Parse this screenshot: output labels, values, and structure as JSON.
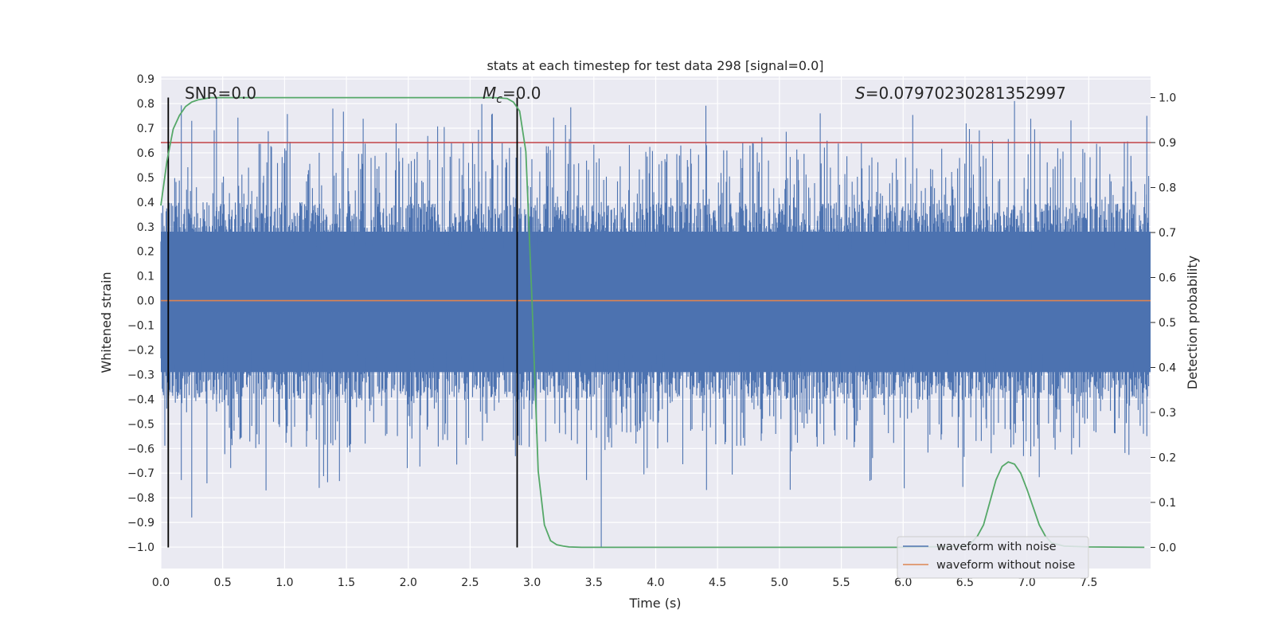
{
  "chart_data": {
    "type": "line",
    "title": "stats at each timestep for test data 298 [signal=0.0]",
    "xlabel": "Time (s)",
    "ylabel": "Whitened strain",
    "y2label": "Detection probability",
    "xlim": [
      0.0,
      8.0
    ],
    "ylim": [
      -1.087,
      0.91
    ],
    "y2lim": [
      -0.047,
      1.047
    ],
    "xticks": [
      "0.0",
      "0.5",
      "1.0",
      "1.5",
      "2.0",
      "2.5",
      "3.0",
      "3.5",
      "4.0",
      "4.5",
      "5.0",
      "5.5",
      "6.0",
      "6.5",
      "7.0",
      "7.5"
    ],
    "yticks": [
      "0.9",
      "0.8",
      "0.7",
      "0.6",
      "0.5",
      "0.4",
      "0.3",
      "0.2",
      "0.1",
      "0.0",
      "−0.1",
      "−0.2",
      "−0.3",
      "−0.4",
      "−0.5",
      "−0.6",
      "−0.7",
      "−0.8",
      "−0.9",
      "−1.0"
    ],
    "y2ticks": [
      "1.0",
      "0.9",
      "0.8",
      "0.7",
      "0.6",
      "0.5",
      "0.4",
      "0.3",
      "0.2",
      "0.1",
      "0.0"
    ],
    "grid": true,
    "legend_position": "lower right",
    "annotations": {
      "snr_prefix": "SNR=",
      "snr_value": "0.0",
      "mc_symbol": "M",
      "mc_subscript": "c",
      "mc_value": "=0.0",
      "s_symbol": "S",
      "s_value": "=0.07970230281352997"
    },
    "colors": {
      "noise": "#4c72b0",
      "clean": "#dd8452",
      "probability": "#55a868",
      "threshold": "#c44e52",
      "markers": "#000000",
      "background": "#eaeaf2"
    },
    "series": [
      {
        "name": "waveform with noise",
        "description_level": "dense noise band roughly between -0.29 and 0.28 with spikes up to about 0.82 and down to -1.0"
      },
      {
        "name": "waveform without noise",
        "values_constant": 0.0
      },
      {
        "name": "",
        "axis": "right",
        "x": [
          0.0,
          0.05,
          0.1,
          0.15,
          0.2,
          0.25,
          0.3,
          0.4,
          0.5,
          0.8,
          1.2,
          1.6,
          2.0,
          2.4,
          2.7,
          2.8,
          2.85,
          2.9,
          2.95,
          3.0,
          3.05,
          3.1,
          3.15,
          3.2,
          3.25,
          3.3,
          3.4,
          3.5,
          3.8,
          4.2,
          5.0,
          6.0,
          6.5,
          6.55,
          6.6,
          6.65,
          6.7,
          6.75,
          6.8,
          6.85,
          6.9,
          6.95,
          7.0,
          7.05,
          7.1,
          7.15,
          7.2,
          7.3,
          7.5,
          7.95
        ],
        "values": [
          0.76,
          0.86,
          0.93,
          0.96,
          0.98,
          0.99,
          0.995,
          1.0,
          1.0,
          1.0,
          1.0,
          1.0,
          1.0,
          1.0,
          1.0,
          0.998,
          0.99,
          0.97,
          0.88,
          0.55,
          0.17,
          0.05,
          0.015,
          0.006,
          0.003,
          0.001,
          0.0,
          0.0,
          0.0,
          0.0,
          0.0,
          0.0,
          0.003,
          0.01,
          0.025,
          0.05,
          0.1,
          0.15,
          0.18,
          0.19,
          0.185,
          0.165,
          0.13,
          0.09,
          0.05,
          0.025,
          0.01,
          0.003,
          0.001,
          0.0
        ]
      },
      {
        "name": "",
        "type": "hline",
        "axis": "right",
        "value": 0.9
      }
    ],
    "vlines": [
      0.06,
      2.88
    ]
  }
}
